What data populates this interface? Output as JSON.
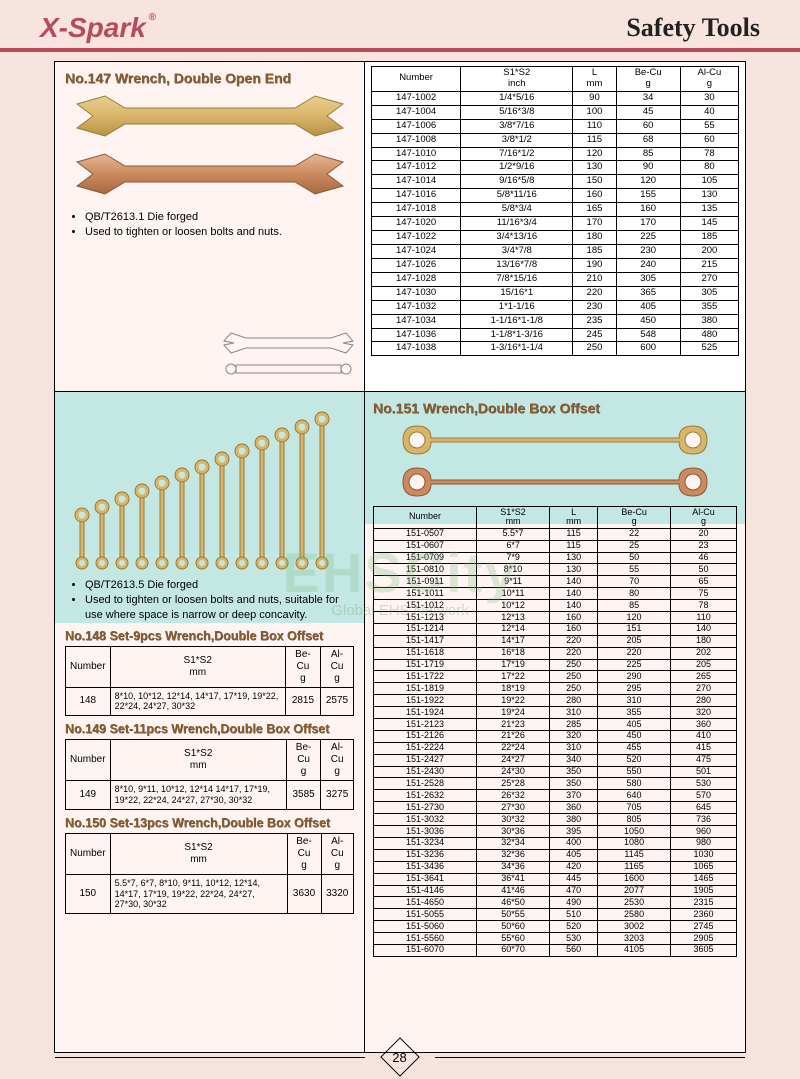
{
  "brand": "X-Spark",
  "reg_mark": "®",
  "page_title": "Safety  Tools",
  "page_number": "28",
  "watermark": "EHSCity",
  "watermark_sub": "Global EHS Network",
  "sec147": {
    "heading": "No.147 Wrench, Double Open End",
    "notes": [
      "QB/T2613.1  Die forged",
      "Used to tighten or loosen bolts and nuts."
    ],
    "headers": [
      "Number",
      "S1*S2\ninch",
      "L\nmm",
      "Be-Cu\ng",
      "Al-Cu\ng"
    ],
    "rows": [
      [
        "147-1002",
        "1/4*5/16",
        "90",
        "34",
        "30"
      ],
      [
        "147-1004",
        "5/16*3/8",
        "100",
        "45",
        "40"
      ],
      [
        "147-1006",
        "3/8*7/16",
        "110",
        "60",
        "55"
      ],
      [
        "147-1008",
        "3/8*1/2",
        "115",
        "68",
        "60"
      ],
      [
        "147-1010",
        "7/16*1/2",
        "120",
        "85",
        "78"
      ],
      [
        "147-1012",
        "1/2*9/16",
        "130",
        "90",
        "80"
      ],
      [
        "147-1014",
        "9/16*5/8",
        "150",
        "120",
        "105"
      ],
      [
        "147-1016",
        "5/8*11/16",
        "160",
        "155",
        "130"
      ],
      [
        "147-1018",
        "5/8*3/4",
        "165",
        "160",
        "135"
      ],
      [
        "147-1020",
        "11/16*3/4",
        "170",
        "170",
        "145"
      ],
      [
        "147-1022",
        "3/4*13/16",
        "180",
        "225",
        "185"
      ],
      [
        "147-1024",
        "3/4*7/8",
        "185",
        "230",
        "200"
      ],
      [
        "147-1026",
        "13/16*7/8",
        "190",
        "240",
        "215"
      ],
      [
        "147-1028",
        "7/8*15/16",
        "210",
        "305",
        "270"
      ],
      [
        "147-1030",
        "15/16*1",
        "220",
        "365",
        "305"
      ],
      [
        "147-1032",
        "1*1-1/16",
        "230",
        "405",
        "355"
      ],
      [
        "147-1034",
        "1-1/16*1-1/8",
        "235",
        "450",
        "380"
      ],
      [
        "147-1036",
        "1-1/8*1-3/16",
        "245",
        "548",
        "480"
      ],
      [
        "147-1038",
        "1-3/16*1-1/4",
        "250",
        "600",
        "525"
      ]
    ]
  },
  "set_notes": [
    "QB/T2613.5   Die forged",
    "Used to tighten or loosen bolts and nuts, suitable for use where space is narrow or deep concavity."
  ],
  "sec148": {
    "heading": "No.148 Set-9pcs Wrench,Double Box Offset",
    "headers": [
      "Number",
      "S1*S2\nmm",
      "Be-Cu\ng",
      "Al-Cu\ng"
    ],
    "row": [
      "148",
      "8*10, 10*12, 12*14, 14*17, 17*19, 19*22, 22*24, 24*27, 30*32",
      "2815",
      "2575"
    ]
  },
  "sec149": {
    "heading": "No.149 Set-11pcs Wrench,Double Box Offset",
    "headers": [
      "Number",
      "S1*S2\nmm",
      "Be-Cu\ng",
      "Al-Cu\ng"
    ],
    "row": [
      "149",
      "8*10, 9*11, 10*12, 12*14 14*17, 17*19, 19*22, 22*24, 24*27, 27*30, 30*32",
      "3585",
      "3275"
    ]
  },
  "sec150": {
    "heading": "No.150 Set-13pcs Wrench,Double Box Offset",
    "headers": [
      "Number",
      "S1*S2\nmm",
      "Be-Cu\ng",
      "Al-Cu\ng"
    ],
    "row": [
      "150",
      "5.5*7, 6*7, 8*10, 9*11, 10*12, 12*14, 14*17, 17*19, 19*22, 22*24, 24*27, 27*30, 30*32",
      "3630",
      "3320"
    ]
  },
  "sec151": {
    "heading": "No.151 Wrench,Double Box Offset",
    "headers": [
      "Number",
      "S1*S2\nmm",
      "L\nmm",
      "Be-Cu\ng",
      "Al-Cu\ng"
    ],
    "rows": [
      [
        "151-0507",
        "5.5*7",
        "115",
        "22",
        "20"
      ],
      [
        "151-0607",
        "6*7",
        "115",
        "25",
        "23"
      ],
      [
        "151-0709",
        "7*9",
        "130",
        "50",
        "46"
      ],
      [
        "151-0810",
        "8*10",
        "130",
        "55",
        "50"
      ],
      [
        "151-0911",
        "9*11",
        "140",
        "70",
        "65"
      ],
      [
        "151-1011",
        "10*11",
        "140",
        "80",
        "75"
      ],
      [
        "151-1012",
        "10*12",
        "140",
        "85",
        "78"
      ],
      [
        "151-1213",
        "12*13",
        "160",
        "120",
        "110"
      ],
      [
        "151-1214",
        "12*14",
        "160",
        "151",
        "140"
      ],
      [
        "151-1417",
        "14*17",
        "220",
        "205",
        "180"
      ],
      [
        "151-1618",
        "16*18",
        "220",
        "220",
        "202"
      ],
      [
        "151-1719",
        "17*19",
        "250",
        "225",
        "205"
      ],
      [
        "151-1722",
        "17*22",
        "250",
        "290",
        "265"
      ],
      [
        "151-1819",
        "18*19",
        "250",
        "295",
        "270"
      ],
      [
        "151-1922",
        "19*22",
        "280",
        "310",
        "280"
      ],
      [
        "151-1924",
        "19*24",
        "310",
        "355",
        "320"
      ],
      [
        "151-2123",
        "21*23",
        "285",
        "405",
        "360"
      ],
      [
        "151-2126",
        "21*26",
        "320",
        "450",
        "410"
      ],
      [
        "151-2224",
        "22*24",
        "310",
        "455",
        "415"
      ],
      [
        "151-2427",
        "24*27",
        "340",
        "520",
        "475"
      ],
      [
        "151-2430",
        "24*30",
        "350",
        "550",
        "501"
      ],
      [
        "151-2528",
        "25*28",
        "350",
        "580",
        "530"
      ],
      [
        "151-2632",
        "26*32",
        "370",
        "640",
        "570"
      ],
      [
        "151-2730",
        "27*30",
        "360",
        "705",
        "645"
      ],
      [
        "151-3032",
        "30*32",
        "380",
        "805",
        "736"
      ],
      [
        "151-3036",
        "30*36",
        "395",
        "1050",
        "960"
      ],
      [
        "151-3234",
        "32*34",
        "400",
        "1080",
        "980"
      ],
      [
        "151-3236",
        "32*36",
        "405",
        "1145",
        "1030"
      ],
      [
        "151-3436",
        "34*36",
        "420",
        "1165",
        "1065"
      ],
      [
        "151-3641",
        "36*41",
        "445",
        "1600",
        "1465"
      ],
      [
        "151-4146",
        "41*46",
        "470",
        "2077",
        "1905"
      ],
      [
        "151-4650",
        "46*50",
        "490",
        "2530",
        "2315"
      ],
      [
        "151-5055",
        "50*55",
        "510",
        "2580",
        "2360"
      ],
      [
        "151-5060",
        "50*60",
        "520",
        "3002",
        "2745"
      ],
      [
        "151-5560",
        "55*60",
        "530",
        "3203",
        "2905"
      ],
      [
        "151-6070",
        "60*70",
        "560",
        "4105",
        "3605"
      ]
    ]
  },
  "colors": {
    "brand": "#b94a5a",
    "heading": "#8a5c2e",
    "bg": "#f8e4de",
    "teal": "#c3e8e3",
    "gold": "#d9b56a",
    "copper": "#cc8a5e"
  }
}
